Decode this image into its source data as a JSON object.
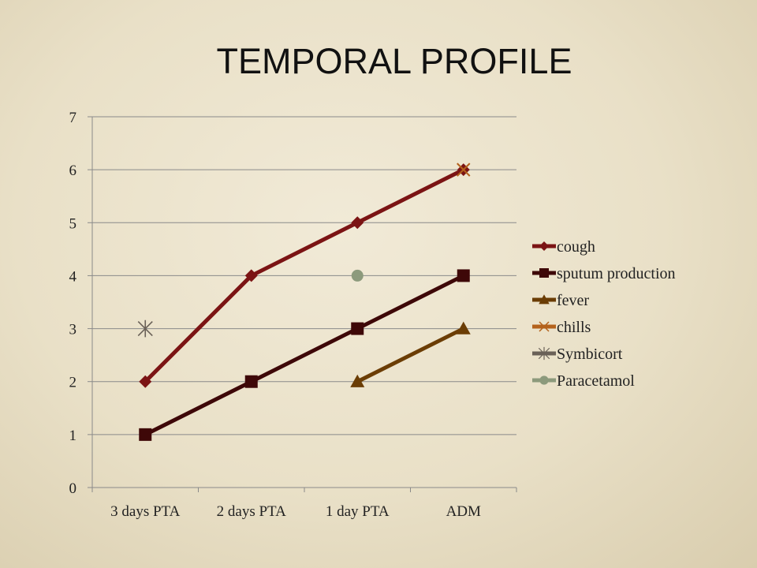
{
  "title": "TEMPORAL PROFILE",
  "chart_data": {
    "type": "line",
    "title": "TEMPORAL PROFILE",
    "xlabel": "",
    "ylabel": "",
    "categories": [
      "3 days PTA",
      "2 days PTA",
      "1 day PTA",
      "ADM"
    ],
    "ylim": [
      0,
      7
    ],
    "yticks": [
      0,
      1,
      2,
      3,
      4,
      5,
      6,
      7
    ],
    "grid": true,
    "legend": "right",
    "series": [
      {
        "name": "cough",
        "values": [
          2,
          4,
          5,
          6
        ],
        "color": "#7b1414",
        "marker": "diamond"
      },
      {
        "name": "sputum production",
        "values": [
          1,
          2,
          3,
          4
        ],
        "color": "#3e0808",
        "marker": "square"
      },
      {
        "name": "fever",
        "values": [
          null,
          null,
          2,
          3
        ],
        "color": "#6b3d05",
        "marker": "triangle"
      },
      {
        "name": "chills",
        "values": [
          null,
          null,
          null,
          6
        ],
        "color": "#b4621c",
        "marker": "x"
      },
      {
        "name": "Symbicort",
        "values": [
          3,
          null,
          null,
          null
        ],
        "color": "#6a6158",
        "marker": "star"
      },
      {
        "name": "Paracetamol",
        "values": [
          null,
          null,
          4,
          null
        ],
        "color": "#8c9a7c",
        "marker": "circle"
      }
    ]
  }
}
